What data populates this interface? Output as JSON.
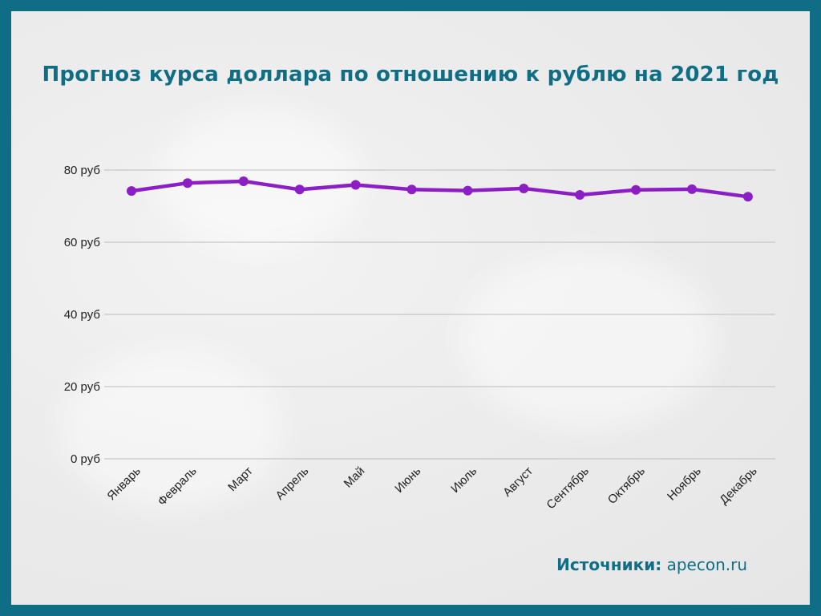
{
  "colors": {
    "frame": "#0f6d86",
    "line": "#8b1ec4",
    "grid": "#bdbdbd",
    "title": "#0f6d86"
  },
  "source": {
    "label": "Источники:",
    "value": "apecon.ru"
  },
  "chart_data": {
    "type": "line",
    "title": "Прогноз курса доллара по отношению к рублю на 2021 год",
    "categories": [
      "Январь",
      "Февраль",
      "Март",
      "Апрель",
      "Май",
      "Июнь",
      "Июль",
      "Август",
      "Сентябрь",
      "Октябрь",
      "Ноябрь",
      "Декабрь"
    ],
    "series": [
      {
        "values": [
          74.2,
          76.4,
          76.9,
          74.6,
          75.9,
          74.6,
          74.3,
          74.9,
          73.1,
          74.5,
          74.7,
          72.6
        ]
      }
    ],
    "yticks": [
      "0 руб",
      "20 руб",
      "40 руб",
      "60 руб",
      "80 руб"
    ],
    "ytick_values": [
      0,
      20,
      40,
      60,
      80
    ],
    "ylim": [
      0,
      80
    ],
    "grid": true,
    "legend": "none"
  }
}
